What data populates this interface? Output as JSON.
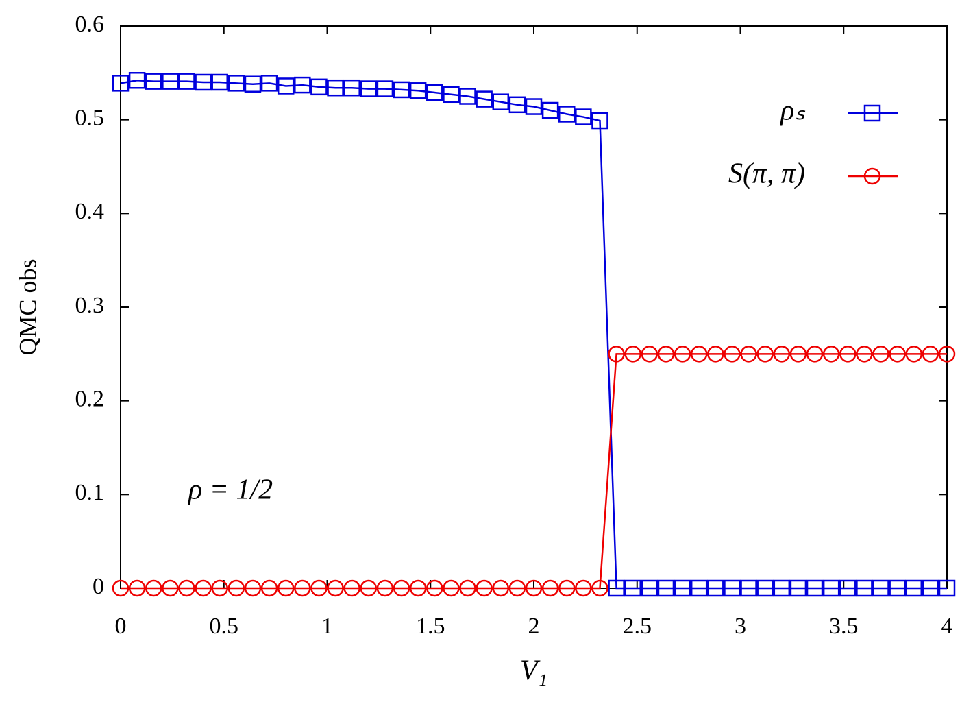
{
  "chart_data": {
    "type": "line",
    "xlabel": "V₁",
    "ylabel": "QMC obs",
    "annotation": "ρ = 1/2",
    "x": [
      0,
      0.08,
      0.16,
      0.24,
      0.32,
      0.4,
      0.48,
      0.56,
      0.64,
      0.72,
      0.8,
      0.88,
      0.96,
      1.04,
      1.12,
      1.2,
      1.28,
      1.36,
      1.44,
      1.52,
      1.6,
      1.68,
      1.76,
      1.84,
      1.92,
      2,
      2.08,
      2.16,
      2.24,
      2.32,
      2.4,
      2.48,
      2.56,
      2.64,
      2.72,
      2.8,
      2.88,
      2.96,
      3.04,
      3.12,
      3.2,
      3.28,
      3.36,
      3.44,
      3.52,
      3.6,
      3.68,
      3.76,
      3.84,
      3.92,
      4
    ],
    "series": [
      {
        "name": "ρₛ",
        "color": "#0000dd",
        "marker": "square",
        "values": [
          0.539,
          0.542,
          0.541,
          0.541,
          0.541,
          0.54,
          0.54,
          0.539,
          0.538,
          0.539,
          0.536,
          0.537,
          0.535,
          0.534,
          0.534,
          0.533,
          0.533,
          0.532,
          0.531,
          0.529,
          0.527,
          0.525,
          0.522,
          0.519,
          0.516,
          0.514,
          0.51,
          0.506,
          0.503,
          0.499,
          0,
          0,
          0,
          0,
          0,
          0,
          0,
          0,
          0,
          0,
          0,
          0,
          0,
          0,
          0,
          0,
          0,
          0,
          0,
          0,
          0
        ]
      },
      {
        "name": "S(π, π)",
        "color": "#ee0000",
        "marker": "circle",
        "values": [
          0,
          0,
          0,
          0,
          0,
          0,
          0,
          0,
          0,
          0,
          0,
          0,
          0,
          0,
          0,
          0,
          0,
          0,
          0,
          0,
          0,
          0,
          0,
          0,
          0,
          0,
          0,
          0,
          0,
          0,
          0.25,
          0.25,
          0.25,
          0.25,
          0.25,
          0.25,
          0.25,
          0.25,
          0.25,
          0.25,
          0.25,
          0.25,
          0.25,
          0.25,
          0.25,
          0.25,
          0.25,
          0.25,
          0.25,
          0.25,
          0.25
        ]
      }
    ],
    "xlim": [
      0,
      4
    ],
    "xticks": [
      0,
      0.5,
      1,
      1.5,
      2,
      2.5,
      3,
      3.5,
      4
    ],
    "ylim": [
      0,
      0.6
    ],
    "yticks": [
      0,
      0.1,
      0.2,
      0.3,
      0.4,
      0.5,
      0.6
    ],
    "legend": "top-right"
  }
}
